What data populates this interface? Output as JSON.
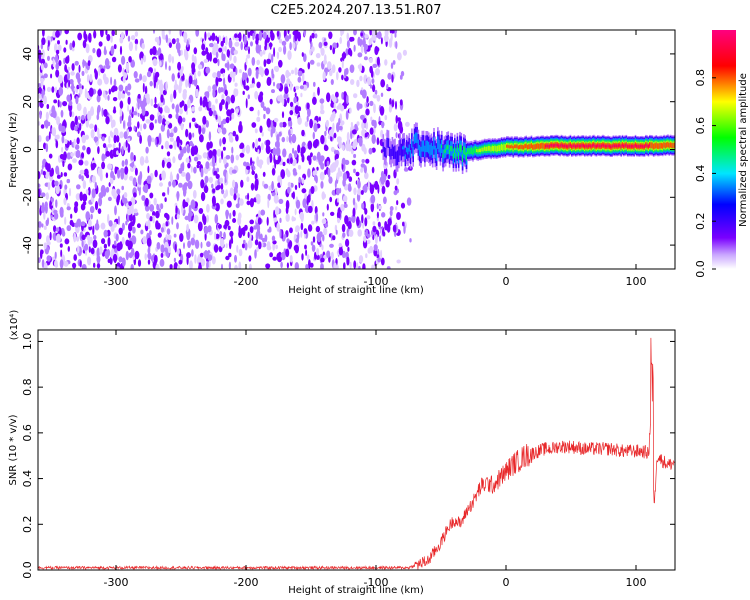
{
  "title": "C2E5.2024.207.13.51.R07",
  "chart_data": [
    {
      "type": "heatmap",
      "xlabel": "Height of straight line (km)",
      "ylabel": "Frequency (Hz)",
      "xlim": [
        -360,
        130
      ],
      "ylim": [
        -50,
        50
      ],
      "xticks": [
        -300,
        -200,
        -100,
        0,
        100
      ],
      "xtick_labels": [
        "-300",
        "-200",
        "-100",
        "0",
        "100"
      ],
      "yticks": [
        -40,
        -20,
        0,
        20,
        40
      ],
      "ytick_labels": [
        "-40",
        "-20",
        "0",
        "20",
        "40"
      ],
      "colorbar": {
        "label": "Normalized spectral amplitude",
        "range": [
          0,
          1
        ],
        "ticks": [
          0.0,
          0.2,
          0.4,
          0.6,
          0.8
        ],
        "tick_labels": [
          "0.0",
          "0.2",
          "0.4",
          "0.6",
          "0.8"
        ],
        "colormap": "rainbow (purple→blue→cyan→green→yellow→red→magenta)"
      },
      "features": {
        "noise_region_x": [
          -360,
          -70
        ],
        "noise_amplitude": 0.05,
        "tone_center_freq": [
          {
            "x": -90,
            "f": 0
          },
          {
            "x": -80,
            "f": -2
          },
          {
            "x": -70,
            "f": 2
          },
          {
            "x": -60,
            "f": 1
          },
          {
            "x": -50,
            "f": 0
          },
          {
            "x": -40,
            "f": -2
          },
          {
            "x": -20,
            "f": 0
          },
          {
            "x": 0,
            "f": 1
          },
          {
            "x": 30,
            "f": 1.5
          },
          {
            "x": 60,
            "f": 1.5
          },
          {
            "x": 90,
            "f": 1.5
          },
          {
            "x": 110,
            "f": 1.5
          },
          {
            "x": 130,
            "f": 2
          }
        ],
        "tone_peak_amplitude": [
          {
            "x": -90,
            "a": 0.25
          },
          {
            "x": -70,
            "a": 0.45
          },
          {
            "x": -50,
            "a": 0.5
          },
          {
            "x": -30,
            "a": 0.6
          },
          {
            "x": -10,
            "a": 0.75
          },
          {
            "x": 10,
            "a": 0.85
          },
          {
            "x": 30,
            "a": 0.95
          },
          {
            "x": 110,
            "a": 0.95
          },
          {
            "x": 130,
            "a": 0.9
          }
        ]
      }
    },
    {
      "type": "line",
      "xlabel": "Height of straight line (km)",
      "ylabel": "SNR (10 * v/v)",
      "y_multiplier": "(x10⁴)",
      "xlim": [
        -360,
        130
      ],
      "ylim": [
        0,
        1.05
      ],
      "xticks": [
        -300,
        -200,
        -100,
        0,
        100
      ],
      "xtick_labels": [
        "-300",
        "-200",
        "-100",
        "0",
        "100"
      ],
      "yticks": [
        0.0,
        0.2,
        0.4,
        0.6,
        0.8,
        1.0
      ],
      "ytick_labels": [
        "0.0",
        "0.2",
        "0.4",
        "0.6",
        "0.8",
        "1.0"
      ],
      "color": "#e8282a",
      "series": [
        {
          "x": [
            -360,
            -300,
            -200,
            -100,
            -75,
            -60,
            -50,
            -45,
            -40,
            -35,
            -30,
            -25,
            -20,
            -15,
            -10,
            -5,
            0,
            5,
            10,
            15,
            20,
            25,
            30,
            35,
            40,
            50,
            60,
            70,
            80,
            90,
            100,
            105,
            110,
            112,
            114,
            116,
            120,
            125,
            130
          ],
          "values": [
            0.01,
            0.01,
            0.01,
            0.01,
            0.01,
            0.04,
            0.12,
            0.18,
            0.22,
            0.2,
            0.26,
            0.3,
            0.36,
            0.38,
            0.37,
            0.4,
            0.43,
            0.46,
            0.48,
            0.5,
            0.51,
            0.52,
            0.53,
            0.53,
            0.54,
            0.54,
            0.53,
            0.53,
            0.53,
            0.52,
            0.52,
            0.52,
            0.51,
            0.8,
            0.25,
            0.5,
            0.48,
            0.46,
            0.47
          ]
        }
      ]
    }
  ]
}
